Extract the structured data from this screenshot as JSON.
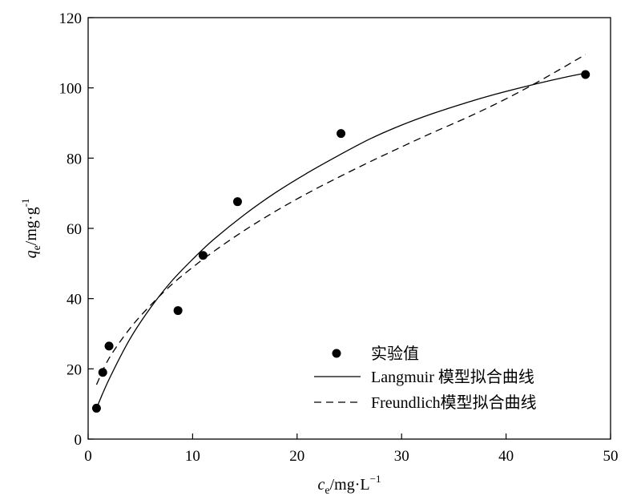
{
  "chart_data": {
    "type": "scatter",
    "xlabel": {
      "main": "c",
      "sub": "e",
      "unit": "/mg·L",
      "sup": "−1"
    },
    "ylabel": {
      "main": "q",
      "sub": "e",
      "unit": "/mg·g",
      "sup": "-1"
    },
    "xlim": [
      0,
      50
    ],
    "ylim": [
      0,
      120
    ],
    "xticks": [
      0,
      10,
      20,
      30,
      40,
      50
    ],
    "yticks": [
      0,
      20,
      40,
      60,
      80,
      100,
      120
    ],
    "grid": false,
    "legend_position": "bottom-right",
    "series": [
      {
        "name": "实验值",
        "kind": "points",
        "x": [
          0.8,
          1.4,
          2.0,
          8.6,
          11.0,
          14.3,
          24.2,
          47.6
        ],
        "y": [
          8.8,
          19.0,
          26.5,
          36.6,
          52.3,
          67.6,
          87.0,
          103.8
        ]
      },
      {
        "name": "Langmuir 模型拟合曲线",
        "kind": "line",
        "style": "solid",
        "x": [
          0.8,
          2,
          4,
          6,
          8,
          10,
          12,
          15,
          18,
          21,
          24,
          27,
          30,
          33,
          36,
          39,
          42,
          45,
          47.6
        ],
        "y": [
          8.8,
          17,
          28.5,
          37.5,
          45,
          51.2,
          56.8,
          64,
          70.3,
          75.8,
          80.8,
          85.5,
          89.4,
          92.7,
          95.6,
          98.2,
          100.5,
          102.6,
          104.2
        ]
      },
      {
        "name": "Freundlich模型拟合曲线",
        "kind": "line",
        "style": "dashed",
        "x": [
          0.8,
          2,
          4,
          6,
          8,
          10,
          12,
          15,
          18,
          21,
          24,
          27,
          30,
          33,
          36,
          39,
          42,
          45,
          47.6
        ],
        "y": [
          15.5,
          23,
          31.5,
          38.2,
          44,
          48.9,
          53.4,
          59.5,
          65,
          70,
          74.6,
          79,
          83.2,
          87.3,
          91.2,
          95.4,
          100,
          105,
          109.5
        ]
      }
    ]
  }
}
